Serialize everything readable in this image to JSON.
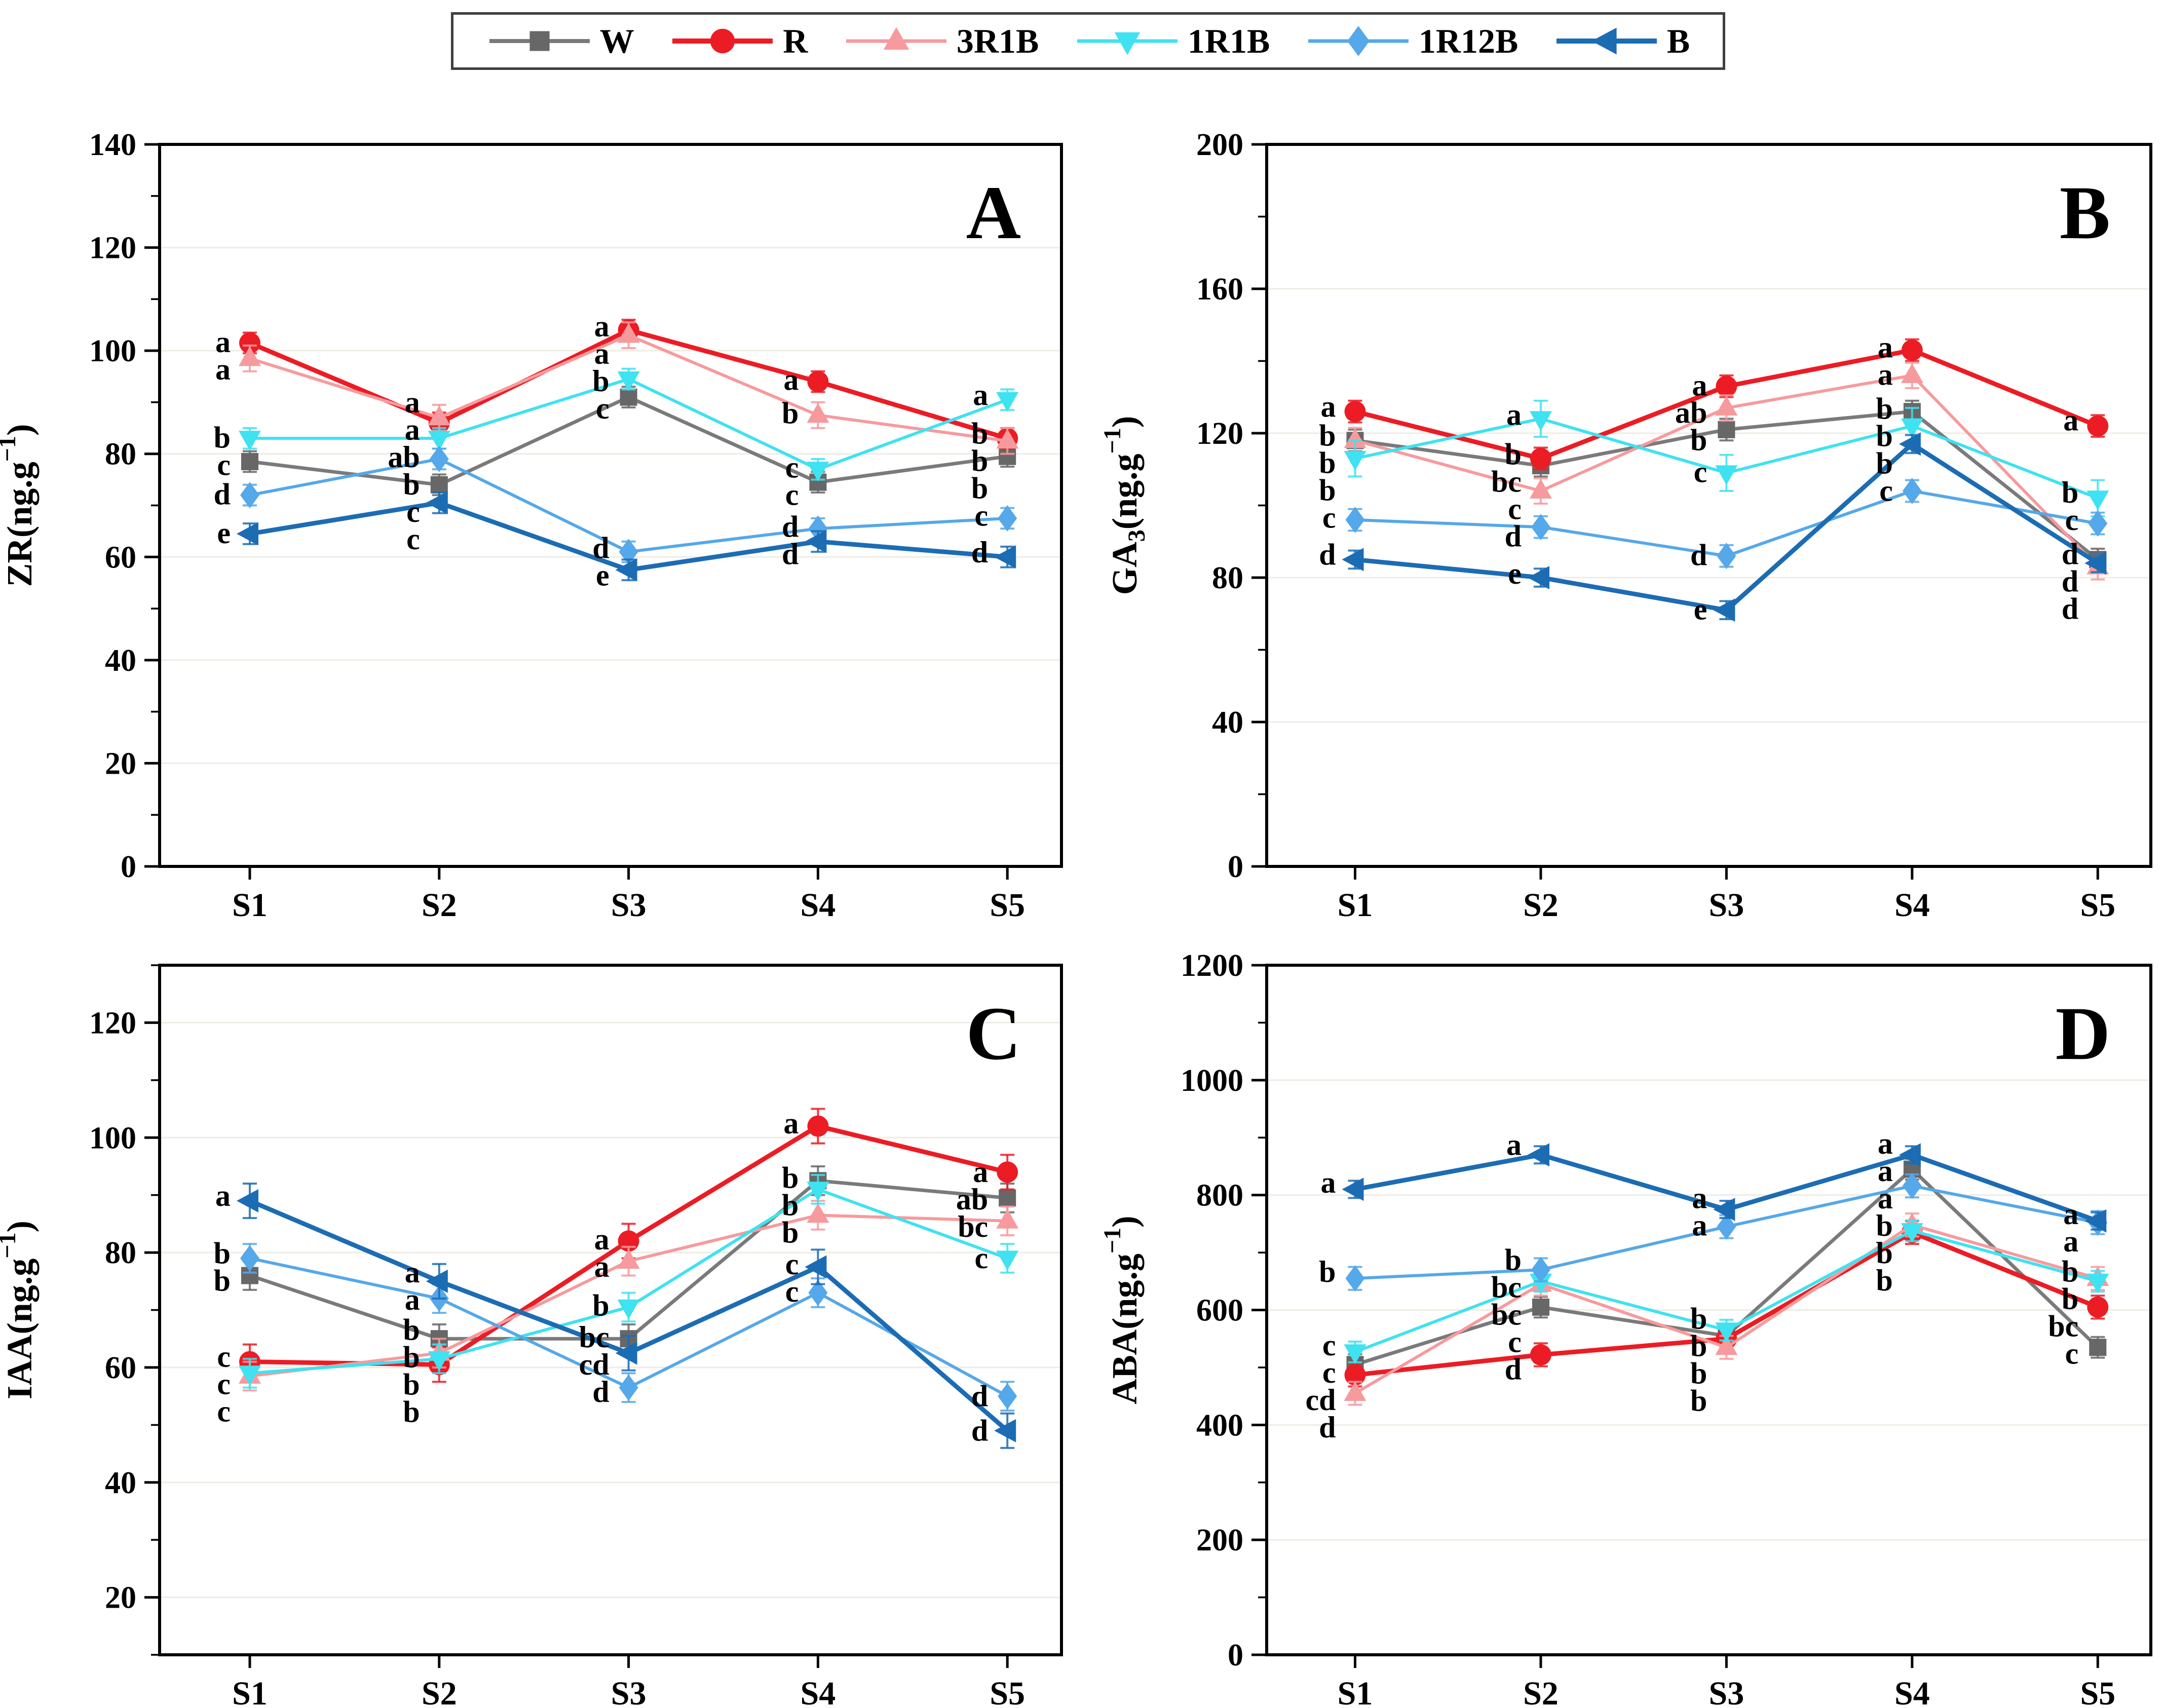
{
  "legend": {
    "items": [
      {
        "label": "W",
        "color": "#676767",
        "line_color": "#7a7a7a",
        "line_width": 7,
        "marker": "square"
      },
      {
        "label": "R",
        "color": "#ec1c24",
        "line_color": "#ec1c24",
        "line_width": 9,
        "marker": "circle"
      },
      {
        "label": "3R1B",
        "color": "#f79a9d",
        "line_color": "#f79a9d",
        "line_width": 6,
        "marker": "triangle-up"
      },
      {
        "label": "1R1B",
        "color": "#3fe2f0",
        "line_color": "#3fe2f0",
        "line_width": 6,
        "marker": "triangle-down"
      },
      {
        "label": "1R12B",
        "color": "#55a8e9",
        "line_color": "#55a8e9",
        "line_width": 6,
        "marker": "diamond"
      },
      {
        "label": "B",
        "color": "#1c6cb4",
        "line_color": "#1c6cb4",
        "line_width": 9,
        "marker": "triangle-left"
      }
    ]
  },
  "chart_data": [
    {
      "type": "line",
      "panel": "A",
      "ylabel_parts": {
        "pre": "ZR",
        "sub": "",
        "mid": "(ng.g",
        "sup": "−1",
        "suf": ")"
      },
      "ylim": [
        0,
        140
      ],
      "ytick_major": 20,
      "ytick_minor": 10,
      "grid": true,
      "legend_position": "top-outside",
      "categories": [
        "S1",
        "S2",
        "S3",
        "S4",
        "S5"
      ],
      "series": [
        {
          "name": "W",
          "values": [
            78.5,
            74,
            91,
            74.5,
            79.5
          ],
          "letters": [
            "c",
            "c",
            "c",
            "c",
            "b"
          ],
          "err": 2
        },
        {
          "name": "R",
          "values": [
            101.5,
            86,
            104,
            94,
            83
          ],
          "letters": [
            "a",
            "a",
            "a",
            "a",
            "b"
          ],
          "err": 2
        },
        {
          "name": "3R1B",
          "values": [
            98.5,
            87,
            103,
            87.5,
            82.5
          ],
          "letters": [
            "a",
            "a",
            "a",
            "b",
            "b"
          ],
          "err": 2.5
        },
        {
          "name": "1R1B",
          "values": [
            83,
            83,
            94.5,
            77,
            90.5
          ],
          "letters": [
            "b",
            "ab",
            "b",
            "c",
            "a"
          ],
          "err": 2
        },
        {
          "name": "1R12B",
          "values": [
            72,
            79,
            61,
            65.5,
            67.5
          ],
          "letters": [
            "d",
            "b",
            "d",
            "d",
            "c"
          ],
          "err": 2
        },
        {
          "name": "B",
          "values": [
            64.5,
            70.5,
            57.5,
            63,
            60
          ],
          "letters": [
            "e",
            "c",
            "e",
            "d",
            "d"
          ],
          "err": 2
        }
      ]
    },
    {
      "type": "line",
      "panel": "B",
      "ylabel_parts": {
        "pre": "GA",
        "sub": "3",
        "mid": "(ng.g",
        "sup": "−1",
        "suf": ")"
      },
      "ylim": [
        0,
        200
      ],
      "ytick_major": 40,
      "ytick_minor": 20,
      "grid": true,
      "legend_position": "top-outside",
      "categories": [
        "S1",
        "S2",
        "S3",
        "S4",
        "S5"
      ],
      "series": [
        {
          "name": "W",
          "values": [
            118,
            111,
            121,
            126,
            85
          ],
          "letters": [
            "b",
            "bc",
            "b",
            "b",
            "d"
          ],
          "err": 3
        },
        {
          "name": "R",
          "values": [
            126,
            113,
            133,
            143,
            122
          ],
          "letters": [
            "a",
            "b",
            "a",
            "a",
            "a"
          ],
          "err": 3
        },
        {
          "name": "3R1B",
          "values": [
            118,
            104,
            127,
            136,
            83
          ],
          "letters": [
            "b",
            "c",
            "ab",
            "a",
            "d"
          ],
          "err": 3.5
        },
        {
          "name": "1R1B",
          "values": [
            113,
            124,
            109,
            122,
            102
          ],
          "letters": [
            "b",
            "a",
            "c",
            "b",
            "b"
          ],
          "err": 5
        },
        {
          "name": "1R12B",
          "values": [
            96,
            94,
            86,
            104,
            95
          ],
          "letters": [
            "c",
            "d",
            "d",
            "c",
            "c"
          ],
          "err": 3
        },
        {
          "name": "B",
          "values": [
            85,
            80,
            71,
            117,
            84
          ],
          "letters": [
            "d",
            "e",
            "e",
            "b",
            "d"
          ],
          "err": 2.5
        }
      ]
    },
    {
      "type": "line",
      "panel": "C",
      "ylabel_parts": {
        "pre": "IAA",
        "sub": "",
        "mid": "(ng.g",
        "sup": "−1",
        "suf": ")"
      },
      "ylim": [
        10,
        130
      ],
      "ytick_major": 20,
      "ytick_minor": 10,
      "grid": true,
      "legend_position": "top-outside",
      "categories": [
        "S1",
        "S2",
        "S3",
        "S4",
        "S5"
      ],
      "series": [
        {
          "name": "W",
          "values": [
            76,
            65,
            65,
            92.5,
            89.5
          ],
          "letters": [
            "b",
            "b",
            "bc",
            "b",
            "ab"
          ],
          "err": 2.5
        },
        {
          "name": "R",
          "values": [
            61,
            60.5,
            82,
            102,
            94
          ],
          "letters": [
            "c",
            "b",
            "a",
            "a",
            "a"
          ],
          "err": 3
        },
        {
          "name": "3R1B",
          "values": [
            58.5,
            62.5,
            78.5,
            86.5,
            85.5
          ],
          "letters": [
            "c",
            "b",
            "a",
            "b",
            "bc"
          ],
          "err": 2.5
        },
        {
          "name": "1R1B",
          "values": [
            59,
            61.5,
            70.5,
            91,
            79
          ],
          "letters": [
            "c",
            "b",
            "b",
            "b",
            "c"
          ],
          "err": 2.5
        },
        {
          "name": "1R12B",
          "values": [
            79,
            72,
            56.5,
            73,
            55
          ],
          "letters": [
            "b",
            "a",
            "d",
            "c",
            "d"
          ],
          "err": 2.5
        },
        {
          "name": "B",
          "values": [
            89,
            75,
            62.5,
            77.5,
            49
          ],
          "letters": [
            "a",
            "a",
            "cd",
            "c",
            "d"
          ],
          "err": 3
        }
      ]
    },
    {
      "type": "line",
      "panel": "D",
      "ylabel_parts": {
        "pre": "ABA",
        "sub": "",
        "mid": "(ng.g",
        "sup": "−1",
        "suf": ")"
      },
      "ylim": [
        0,
        1200
      ],
      "ytick_major": 200,
      "ytick_minor": 100,
      "grid": true,
      "legend_position": "top-outside",
      "categories": [
        "S1",
        "S2",
        "S3",
        "S4",
        "S5"
      ],
      "series": [
        {
          "name": "W",
          "values": [
            505,
            605,
            555,
            845,
            535
          ],
          "letters": [
            "c",
            "c",
            "b",
            "a",
            "c"
          ],
          "err": 18
        },
        {
          "name": "R",
          "values": [
            487,
            522,
            550,
            735,
            605
          ],
          "letters": [
            "cd",
            "d",
            "b",
            "b",
            "bc"
          ],
          "err": 20
        },
        {
          "name": "3R1B",
          "values": [
            455,
            645,
            535,
            748,
            655
          ],
          "letters": [
            "d",
            "bc",
            "b",
            "b",
            "b"
          ],
          "err": 20
        },
        {
          "name": "1R1B",
          "values": [
            527,
            650,
            565,
            738,
            650
          ],
          "letters": [
            "c",
            "bc",
            "b",
            "b",
            "b"
          ],
          "err": 18
        },
        {
          "name": "1R12B",
          "values": [
            655,
            670,
            745,
            816,
            752
          ],
          "letters": [
            "b",
            "b",
            "a",
            "a",
            "a"
          ],
          "err": 20
        },
        {
          "name": "B",
          "values": [
            810,
            870,
            775,
            870,
            755
          ],
          "letters": [
            "a",
            "a",
            "a",
            "a",
            "a"
          ],
          "err": 15
        }
      ]
    }
  ]
}
